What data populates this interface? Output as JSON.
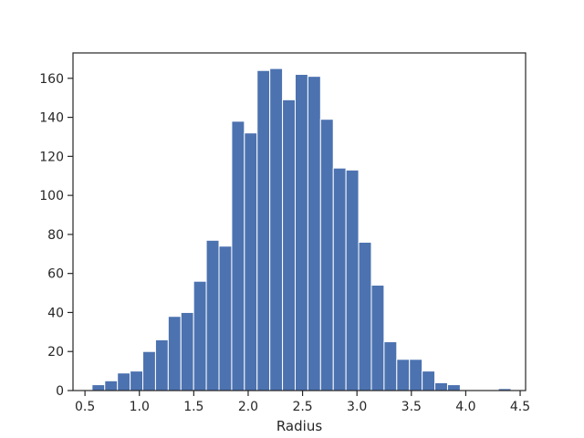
{
  "chart_data": {
    "type": "bar",
    "subtype": "histogram",
    "title": "",
    "xlabel": "Radius",
    "ylabel": "",
    "xlim": [
      0.39,
      4.55
    ],
    "ylim": [
      0,
      173
    ],
    "bar_color": "#4c72b0",
    "bar_edge_color": "#ffffff",
    "axis_color": "#262626",
    "grid": false,
    "legend": "none",
    "xticks": [
      0.5,
      1.0,
      1.5,
      2.0,
      2.5,
      3.0,
      3.5,
      4.0,
      4.5
    ],
    "xtick_labels": [
      "0.5",
      "1.0",
      "1.5",
      "2.0",
      "2.5",
      "3.0",
      "3.5",
      "4.0",
      "4.5"
    ],
    "yticks": [
      0,
      20,
      40,
      60,
      80,
      100,
      120,
      140,
      160
    ],
    "ytick_labels": [
      "0",
      "20",
      "40",
      "60",
      "80",
      "100",
      "120",
      "140",
      "160"
    ],
    "bin_start": 0.565,
    "bin_width": 0.1167,
    "counts": [
      3,
      5,
      9,
      10,
      20,
      26,
      38,
      40,
      56,
      77,
      74,
      138,
      132,
      164,
      165,
      149,
      162,
      161,
      139,
      114,
      113,
      76,
      54,
      25,
      16,
      16,
      10,
      4,
      3,
      0,
      0,
      0,
      1
    ]
  }
}
